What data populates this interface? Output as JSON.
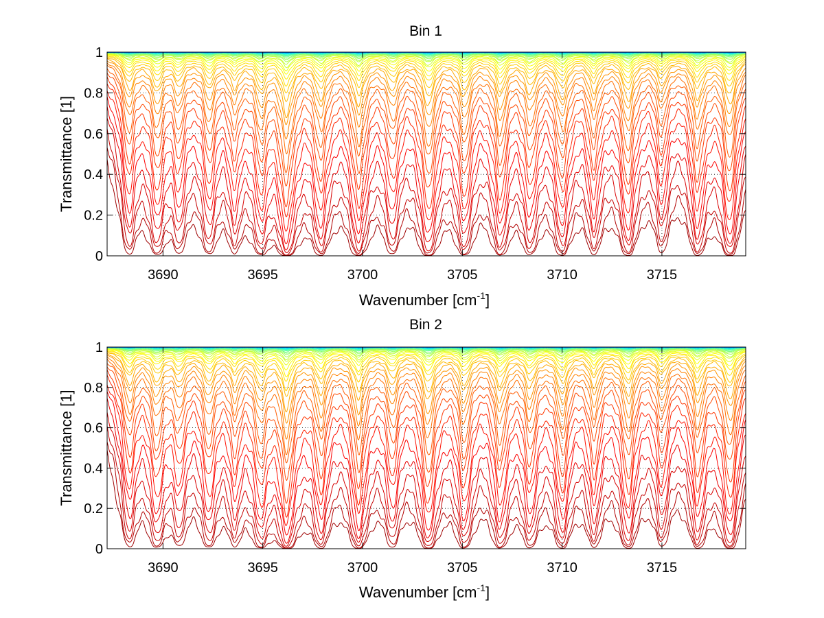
{
  "chart_data": [
    {
      "type": "line",
      "title": "Bin 1",
      "xlabel": "Wavenumber [cm",
      "xlabel_sup": "-1",
      "xlabel_end": "]",
      "ylabel": "Transmittance [1]",
      "xlim": [
        3687.2,
        3719.2
      ],
      "ylim": [
        0,
        1
      ],
      "xticks": [
        3690,
        3695,
        3700,
        3705,
        3710,
        3715
      ],
      "xtick_labels": [
        "3690",
        "3695",
        "3700",
        "3705",
        "3710",
        "3715"
      ],
      "yticks": [
        0,
        0.2,
        0.4,
        0.6,
        0.8,
        1
      ],
      "ytick_labels": [
        "0",
        "0.2",
        "0.4",
        "0.6",
        "0.8",
        "1"
      ],
      "grid": true,
      "legend": "none",
      "colormap": "jet",
      "series_count": 40,
      "absorption_lines_x": [
        3688.3,
        3689.7,
        3690.8,
        3692.3,
        3693.6,
        3694.9,
        3696.2,
        3697.9,
        3699.8,
        3701.5,
        3703.3,
        3705.1,
        3706.9,
        3708.4,
        3710.0,
        3711.6,
        3713.3,
        3715.0,
        3716.8,
        3718.4
      ],
      "absorption_lines_depth": [
        0.55,
        0.6,
        0.45,
        0.55,
        0.45,
        0.6,
        1.0,
        0.7,
        0.85,
        0.55,
        0.9,
        0.7,
        0.7,
        0.6,
        0.7,
        0.55,
        0.75,
        0.45,
        0.7,
        0.85
      ]
    },
    {
      "type": "line",
      "title": "Bin 2",
      "xlabel": "Wavenumber [cm",
      "xlabel_sup": "-1",
      "xlabel_end": "]",
      "ylabel": "Transmittance [1]",
      "xlim": [
        3687.2,
        3719.2
      ],
      "ylim": [
        0,
        1
      ],
      "xticks": [
        3690,
        3695,
        3700,
        3705,
        3710,
        3715
      ],
      "xtick_labels": [
        "3690",
        "3695",
        "3700",
        "3705",
        "3710",
        "3715"
      ],
      "yticks": [
        0,
        0.2,
        0.4,
        0.6,
        0.8,
        1
      ],
      "ytick_labels": [
        "0",
        "0.2",
        "0.4",
        "0.6",
        "0.8",
        "1"
      ],
      "grid": true,
      "legend": "none",
      "colormap": "jet",
      "series_count": 40,
      "absorption_lines_x": [
        3688.3,
        3689.7,
        3690.8,
        3692.3,
        3693.6,
        3694.9,
        3696.2,
        3697.9,
        3699.8,
        3701.5,
        3703.3,
        3705.1,
        3706.9,
        3708.4,
        3710.0,
        3711.6,
        3713.3,
        3715.0,
        3716.8,
        3718.4
      ],
      "absorption_lines_depth": [
        0.55,
        0.6,
        0.45,
        0.6,
        0.45,
        0.65,
        1.0,
        0.7,
        0.85,
        0.55,
        0.9,
        0.7,
        0.7,
        0.6,
        0.7,
        0.55,
        0.75,
        0.5,
        0.7,
        0.85
      ]
    }
  ]
}
